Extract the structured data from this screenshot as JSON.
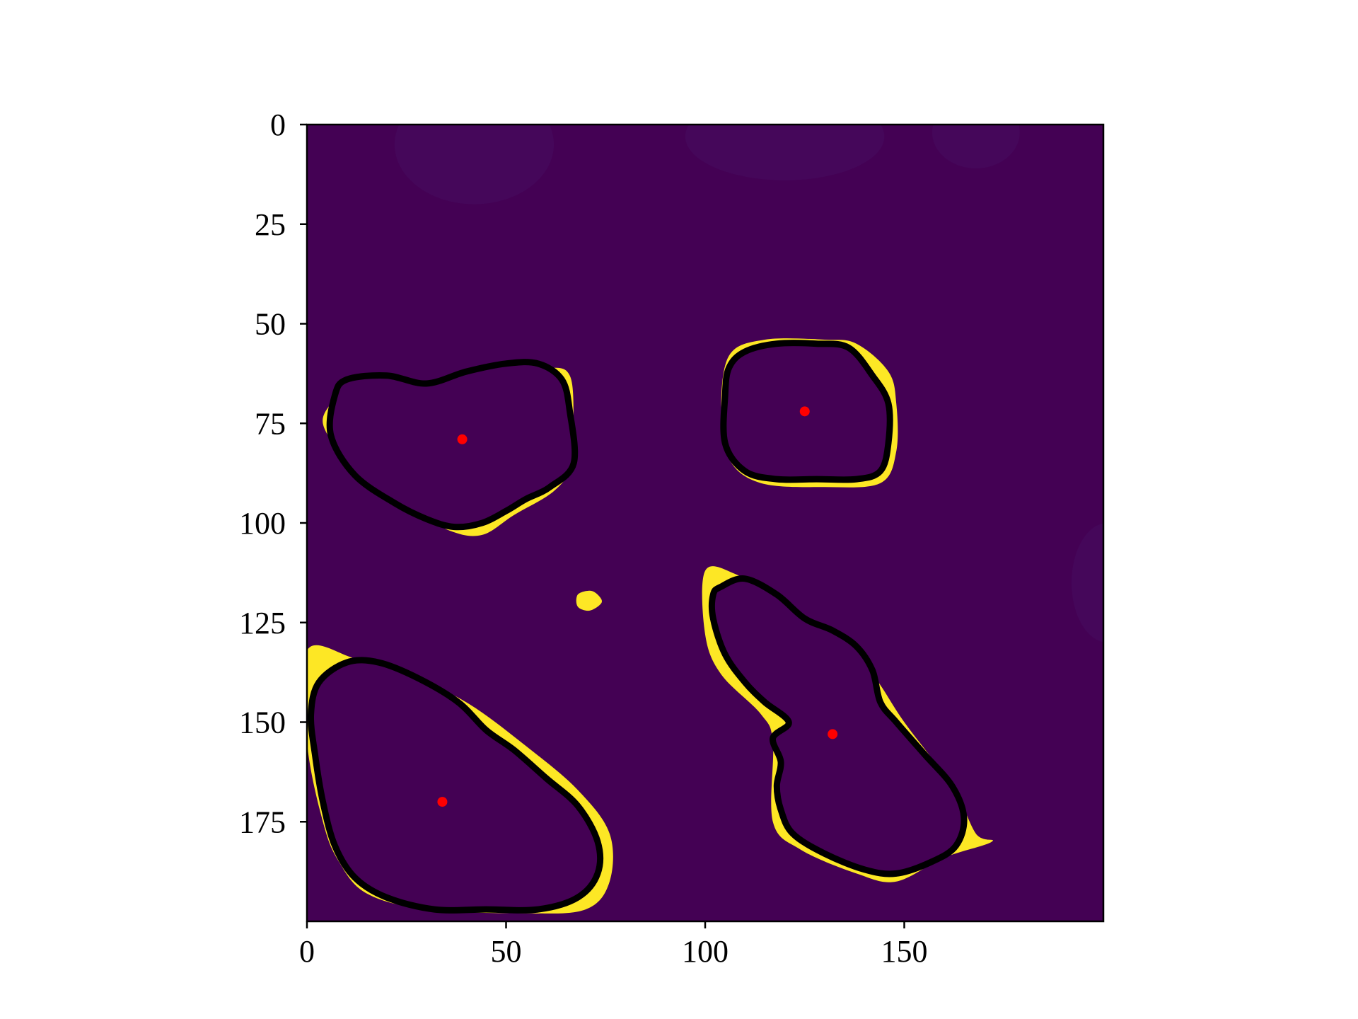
{
  "chart_data": {
    "type": "heatmap",
    "title": "",
    "xlabel": "",
    "ylabel": "",
    "xlim": [
      0,
      200
    ],
    "ylim": [
      200,
      0
    ],
    "x_ticks": [
      0,
      50,
      100,
      150
    ],
    "y_ticks": [
      0,
      25,
      50,
      75,
      100,
      125,
      150,
      175
    ],
    "x_tick_labels": [
      "0",
      "50",
      "100",
      "150"
    ],
    "y_tick_labels": [
      "0",
      "25",
      "50",
      "75",
      "100",
      "125",
      "150",
      "175"
    ],
    "grid": false,
    "legend": "none",
    "colors": {
      "background": "#440154",
      "mask": "#fde725",
      "contour": "#000000",
      "centroid": "#ff0000"
    },
    "mask_regions": [
      [
        [
          6,
          70
        ],
        [
          10,
          66
        ],
        [
          20,
          64
        ],
        [
          30,
          65
        ],
        [
          45,
          62
        ],
        [
          60,
          61
        ],
        [
          66,
          63
        ],
        [
          67,
          75
        ],
        [
          67,
          85
        ],
        [
          62,
          92
        ],
        [
          52,
          98
        ],
        [
          44,
          103
        ],
        [
          36,
          102
        ],
        [
          25,
          96
        ],
        [
          15,
          90
        ],
        [
          8,
          82
        ],
        [
          4,
          75
        ]
      ],
      [
        [
          106,
          58
        ],
        [
          115,
          54
        ],
        [
          130,
          54
        ],
        [
          138,
          55
        ],
        [
          146,
          62
        ],
        [
          148,
          70
        ],
        [
          148,
          82
        ],
        [
          144,
          90
        ],
        [
          130,
          91
        ],
        [
          114,
          90
        ],
        [
          106,
          84
        ],
        [
          104,
          72
        ]
      ],
      [
        [
          0,
          132
        ],
        [
          12,
          134
        ],
        [
          25,
          138
        ],
        [
          40,
          145
        ],
        [
          55,
          156
        ],
        [
          68,
          167
        ],
        [
          76,
          178
        ],
        [
          76,
          190
        ],
        [
          70,
          197
        ],
        [
          55,
          198
        ],
        [
          30,
          197
        ],
        [
          15,
          193
        ],
        [
          8,
          185
        ],
        [
          4,
          175
        ],
        [
          0,
          155
        ]
      ],
      [
        [
          100,
          112
        ],
        [
          108,
          113
        ],
        [
          120,
          120
        ],
        [
          132,
          128
        ],
        [
          142,
          138
        ],
        [
          150,
          150
        ],
        [
          162,
          166
        ],
        [
          168,
          178
        ],
        [
          172,
          180
        ],
        [
          160,
          184
        ],
        [
          148,
          190
        ],
        [
          138,
          188
        ],
        [
          124,
          182
        ],
        [
          117,
          175
        ],
        [
          117,
          155
        ],
        [
          114,
          148
        ],
        [
          104,
          138
        ],
        [
          100,
          128
        ]
      ],
      [
        [
          68,
          118
        ],
        [
          71,
          117
        ],
        [
          73,
          118
        ],
        [
          74,
          120
        ],
        [
          71,
          122
        ],
        [
          68,
          121
        ]
      ]
    ],
    "contours": [
      [
        [
          10,
          64
        ],
        [
          20,
          63
        ],
        [
          30,
          65
        ],
        [
          40,
          62
        ],
        [
          50,
          60
        ],
        [
          58,
          60
        ],
        [
          64,
          64
        ],
        [
          66,
          72
        ],
        [
          67,
          85
        ],
        [
          61,
          91
        ],
        [
          55,
          94
        ],
        [
          50,
          97
        ],
        [
          44,
          100
        ],
        [
          37,
          101
        ],
        [
          30,
          99
        ],
        [
          22,
          95
        ],
        [
          12,
          88
        ],
        [
          6,
          78
        ],
        [
          7,
          68
        ]
      ],
      [
        [
          110,
          57
        ],
        [
          118,
          55
        ],
        [
          128,
          55
        ],
        [
          136,
          56
        ],
        [
          142,
          63
        ],
        [
          146,
          70
        ],
        [
          146,
          80
        ],
        [
          144,
          87
        ],
        [
          138,
          89
        ],
        [
          128,
          89
        ],
        [
          118,
          89
        ],
        [
          110,
          87
        ],
        [
          105,
          80
        ],
        [
          105,
          68
        ],
        [
          106,
          61
        ]
      ],
      [
        [
          3,
          140
        ],
        [
          10,
          135
        ],
        [
          18,
          135
        ],
        [
          28,
          139
        ],
        [
          38,
          145
        ],
        [
          45,
          152
        ],
        [
          52,
          157
        ],
        [
          60,
          164
        ],
        [
          68,
          171
        ],
        [
          73,
          180
        ],
        [
          73,
          188
        ],
        [
          68,
          194
        ],
        [
          58,
          197
        ],
        [
          45,
          197
        ],
        [
          32,
          197
        ],
        [
          20,
          194
        ],
        [
          12,
          189
        ],
        [
          7,
          181
        ],
        [
          4,
          170
        ],
        [
          2,
          158
        ],
        [
          1,
          148
        ]
      ],
      [
        [
          104,
          116
        ],
        [
          110,
          114
        ],
        [
          118,
          118
        ],
        [
          125,
          124
        ],
        [
          132,
          127
        ],
        [
          138,
          131
        ],
        [
          142,
          137
        ],
        [
          144,
          145
        ],
        [
          148,
          150
        ],
        [
          155,
          158
        ],
        [
          162,
          166
        ],
        [
          165,
          174
        ],
        [
          163,
          181
        ],
        [
          157,
          185
        ],
        [
          148,
          188
        ],
        [
          140,
          187
        ],
        [
          130,
          183
        ],
        [
          122,
          178
        ],
        [
          119,
          172
        ],
        [
          118,
          166
        ],
        [
          119,
          160
        ],
        [
          117,
          154
        ],
        [
          121,
          150
        ],
        [
          115,
          145
        ],
        [
          110,
          140
        ],
        [
          105,
          133
        ],
        [
          102,
          124
        ],
        [
          102,
          118
        ]
      ]
    ],
    "centroids": [
      [
        39,
        79
      ],
      [
        125,
        72
      ],
      [
        34,
        170
      ],
      [
        132,
        153
      ]
    ],
    "faint_blobs": [
      [
        42,
        5,
        40,
        30
      ],
      [
        120,
        3,
        50,
        22
      ],
      [
        168,
        2,
        22,
        18
      ],
      [
        201,
        115,
        18,
        30
      ]
    ]
  }
}
